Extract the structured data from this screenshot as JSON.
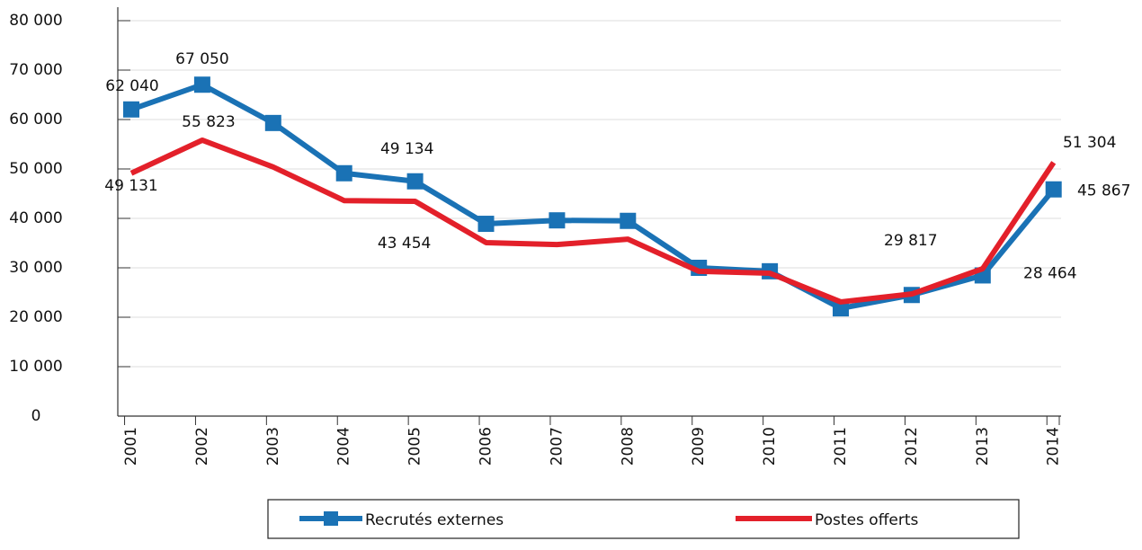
{
  "chart_data": {
    "type": "line",
    "categories": [
      "2001",
      "2002",
      "2003",
      "2004",
      "2005",
      "2006",
      "2007",
      "2008",
      "2009",
      "2010",
      "2011",
      "2012",
      "2013",
      "2014"
    ],
    "series": [
      {
        "name": "Recrutés externes",
        "color": "#1a72b5",
        "values": [
          62040,
          67050,
          59300,
          49134,
          47500,
          38900,
          39600,
          39500,
          30000,
          29300,
          21800,
          24500,
          28464,
          45867
        ],
        "value_labels": [
          "62 040",
          "67 050",
          null,
          "49 134",
          null,
          null,
          null,
          null,
          null,
          null,
          null,
          null,
          "28 464",
          "45 867"
        ]
      },
      {
        "name": "Postes offerts",
        "color": "#e3202a",
        "values": [
          49131,
          55823,
          50400,
          43600,
          43454,
          35100,
          34700,
          35800,
          29300,
          28900,
          23100,
          24700,
          29817,
          51304
        ],
        "value_labels": [
          "49 131",
          "55 823",
          null,
          null,
          "43 454",
          null,
          null,
          null,
          null,
          null,
          null,
          null,
          "29 817",
          "51 304"
        ]
      }
    ],
    "ylim": [
      0,
      80000
    ],
    "yticks": [
      {
        "value": 0,
        "label": "0"
      },
      {
        "value": 10000,
        "label": "10 000"
      },
      {
        "value": 20000,
        "label": "20 000"
      },
      {
        "value": 30000,
        "label": "30 000"
      },
      {
        "value": 40000,
        "label": "40 000"
      },
      {
        "value": 50000,
        "label": "50 000"
      },
      {
        "value": 60000,
        "label": "60 000"
      },
      {
        "value": 70000,
        "label": "70 000"
      },
      {
        "value": 80000,
        "label": "80 000"
      }
    ],
    "grid": true
  }
}
